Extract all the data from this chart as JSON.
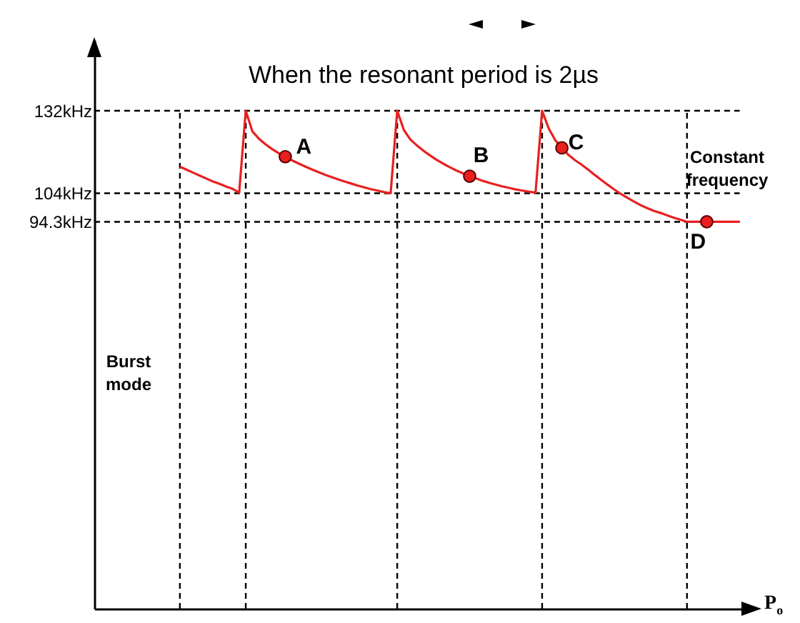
{
  "chart_data": {
    "type": "line",
    "title": "When the resonant period is 2µs",
    "xlabel": "P$_{o}$",
    "ylim": [
      -37,
      156
    ],
    "yticks": [
      {
        "value": 94.3,
        "label": "94.3kHz"
      },
      {
        "value": 104,
        "label": "104kHz"
      },
      {
        "value": 132,
        "label": "132kHz"
      }
    ],
    "categories": [
      null,
      null,
      null,
      null,
      null,
      null,
      null,
      null,
      null,
      null,
      null,
      null,
      null,
      null,
      null,
      null,
      null,
      null,
      null,
      null,
      null,
      null,
      null,
      null,
      null,
      null,
      null,
      null,
      null,
      null,
      null,
      null,
      null,
      null,
      null,
      null,
      null,
      null,
      null,
      null,
      null,
      null,
      null,
      null,
      null,
      null,
      null,
      null,
      null,
      null,
      null,
      null,
      null,
      null,
      null,
      null,
      null,
      null,
      null,
      null,
      null,
      null,
      null,
      null,
      null,
      null,
      null,
      null,
      null,
      null,
      null,
      null,
      null,
      null,
      null,
      null,
      null,
      null,
      null,
      null,
      null,
      null,
      null,
      null,
      null,
      null,
      null,
      null,
      null,
      null,
      null,
      null,
      null,
      null,
      null,
      null,
      null,
      null,
      null,
      null,
      null
    ],
    "series": [
      {
        "color": "#e8201f",
        "values": [
          null,
          null,
          null,
          null,
          null,
          null,
          null,
          null,
          null,
          null,
          null,
          null,
          null,
          113,
          112,
          111,
          110,
          109,
          108,
          107.2,
          106.3,
          105.5,
          104.2,
          132,
          125,
          122.5,
          120.6,
          119,
          117.6,
          116.4,
          115.2,
          114.1,
          113.1,
          112.1,
          111.2,
          110.3,
          109.5,
          108.7,
          108,
          107.3,
          106.6,
          106,
          105.4,
          104.9,
          104.4,
          104,
          132,
          125.5,
          122.2,
          120.2,
          118.4,
          116.8,
          115.3,
          114,
          112.8,
          111.7,
          110.7,
          109.8,
          109,
          108.2,
          107.5,
          106.9,
          106.3,
          105.8,
          105.3,
          104.9,
          104.5,
          104.2,
          132,
          126,
          122,
          119.4,
          117,
          115.2,
          113.7,
          112,
          110.2,
          108.5,
          106.8,
          105.2,
          103.7,
          102.4,
          101.1,
          99.9,
          98.9,
          98,
          97.3,
          96.5,
          95.7,
          95,
          94.3,
          94.3,
          94.3,
          94.3,
          94.3,
          94.3,
          94.3,
          94.3,
          94.3,
          null,
          null
        ]
      },
      {
        "type": "scatter",
        "color": "#e8201f",
        "marker": "circle",
        "values": [
          null,
          null,
          null,
          null,
          null,
          null,
          null,
          null,
          null,
          null,
          null,
          null,
          null,
          null,
          null,
          null,
          null,
          null,
          null,
          null,
          null,
          null,
          null,
          null,
          null,
          null,
          null,
          null,
          null,
          116.4,
          null,
          null,
          null,
          null,
          null,
          null,
          null,
          null,
          null,
          null,
          null,
          null,
          null,
          null,
          null,
          null,
          null,
          null,
          null,
          null,
          null,
          null,
          null,
          null,
          null,
          null,
          null,
          109.8,
          null,
          null,
          null,
          null,
          null,
          null,
          null,
          null,
          null,
          null,
          null,
          null,
          null,
          119.4,
          null,
          null,
          null,
          null,
          null,
          null,
          null,
          null,
          null,
          null,
          null,
          null,
          null,
          null,
          null,
          null,
          null,
          null,
          null,
          null,
          null,
          94.3,
          null,
          null,
          null,
          null,
          null,
          null,
          null
        ]
      }
    ],
    "grid": true,
    "annotations": [
      "A",
      "B",
      "C",
      "D",
      "Constant\nfrequency",
      "Burst\nmode"
    ]
  }
}
